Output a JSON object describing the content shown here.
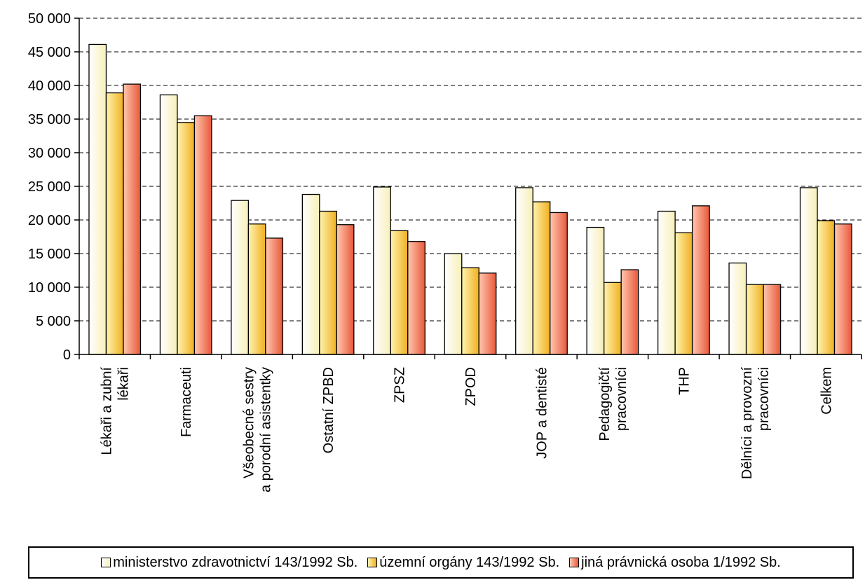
{
  "chart_data": {
    "type": "bar",
    "categories": [
      [
        "Lékaři a zubní",
        "lékaři"
      ],
      [
        "Farmaceuti"
      ],
      [
        "Všeobecné sestry",
        "a porodní asistentky"
      ],
      [
        "Ostatní ZPBD"
      ],
      [
        "ZPSZ"
      ],
      [
        "ZPOD"
      ],
      [
        "JOP a dentisté"
      ],
      [
        "Pedagogičtí",
        "pracovníci"
      ],
      [
        "THP"
      ],
      [
        "Dělníci a provozní",
        "pracovníci"
      ],
      [
        "Celkem"
      ]
    ],
    "series": [
      {
        "name": "ministerstvo zdravotnictví 143/1992 Sb.",
        "color": "#fffbe0",
        "gradient": [
          "#ffffff",
          "#f7efb8"
        ],
        "values": [
          46100,
          38600,
          22900,
          23800,
          24900,
          15000,
          24800,
          18900,
          21300,
          13600,
          24800
        ]
      },
      {
        "name": "územní orgány 143/1992 Sb.",
        "color": "#f8c840",
        "gradient": [
          "#fff3b0",
          "#f0b020"
        ],
        "values": [
          38900,
          34500,
          19400,
          21300,
          18400,
          12900,
          22700,
          10700,
          18100,
          10400,
          19900
        ]
      },
      {
        "name": "jiná právnická osoba 1/1992 Sb.",
        "color": "#ee6a4a",
        "gradient": [
          "#ffc8b0",
          "#e8583a"
        ],
        "values": [
          40200,
          35500,
          17300,
          19300,
          16800,
          12100,
          21100,
          12600,
          22100,
          10400,
          19400
        ]
      }
    ],
    "y_ticks": [
      "0",
      "5 000",
      "10 000",
      "15 000",
      "20 000",
      "25 000",
      "30 000",
      "35 000",
      "40 000",
      "45 000",
      "50 000"
    ],
    "ylim": [
      0,
      50000
    ],
    "grid": true,
    "legend_position": "bottom"
  }
}
